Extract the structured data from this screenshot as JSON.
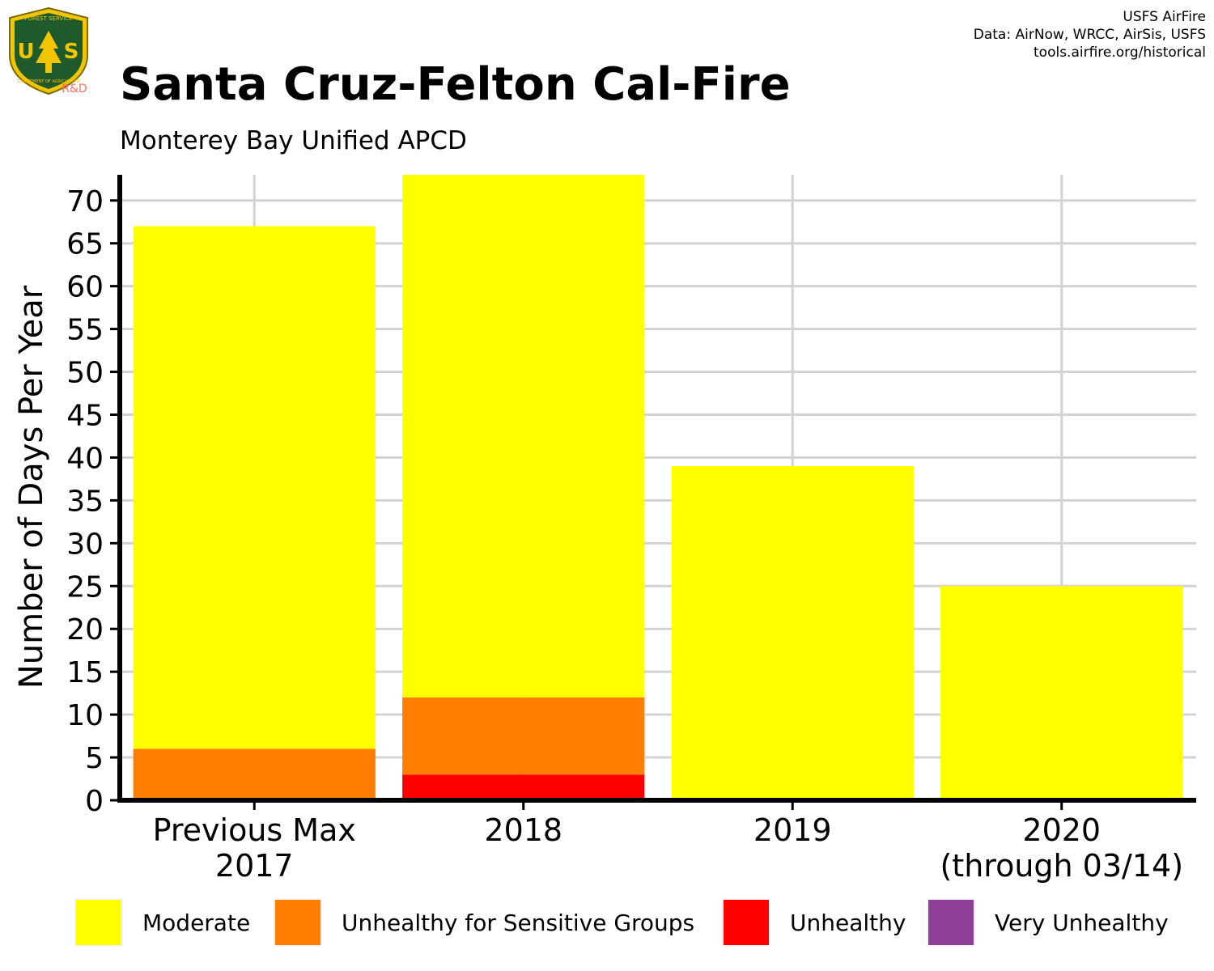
{
  "header": {
    "title": "Santa Cruz-Felton Cal-Fire",
    "subtitle": "Monterey Bay Unified APCD",
    "credits": [
      "USFS AirFire",
      "Data: AirNow, WRCC, AirSis, USFS",
      "tools.airfire.org/historical"
    ]
  },
  "logo": {
    "top_text": "FOREST SERVICE",
    "letters": "US",
    "bottom_text": "DEPARTMENT OF AGRICULTURE",
    "badge": "R&D"
  },
  "colors": {
    "moderate": "#ffff00",
    "usg": "#ff7e00",
    "unhealthy": "#ff0000",
    "very_unhealthy": "#8f3f97",
    "grid": "#d3d3d3",
    "axis": "#000000"
  },
  "chart_data": {
    "type": "bar",
    "stacked": true,
    "categories": [
      "Previous Max\n2017",
      "2018",
      "2019",
      "2020\n(through 03/14)"
    ],
    "series": [
      {
        "name": "Moderate",
        "values": [
          61,
          61,
          39,
          25
        ]
      },
      {
        "name": "Unhealthy for Sensitive Groups",
        "values": [
          6,
          9,
          0,
          0
        ]
      },
      {
        "name": "Unhealthy",
        "values": [
          0,
          3,
          0,
          0
        ]
      },
      {
        "name": "Very Unhealthy",
        "values": [
          0,
          0,
          0,
          0
        ]
      }
    ],
    "title": "Santa Cruz-Felton Cal-Fire",
    "subtitle": "Monterey Bay Unified APCD",
    "xlabel": "",
    "ylabel": "Number of Days Per Year",
    "ylim": [
      0,
      73
    ],
    "yticks": [
      0,
      5,
      10,
      15,
      20,
      25,
      30,
      35,
      40,
      45,
      50,
      55,
      60,
      65,
      70
    ],
    "grid": true,
    "legend_position": "bottom"
  },
  "legend": [
    {
      "label": "Moderate",
      "color": "#ffff00"
    },
    {
      "label": "Unhealthy for Sensitive Groups",
      "color": "#ff7e00"
    },
    {
      "label": "Unhealthy",
      "color": "#ff0000"
    },
    {
      "label": "Very Unhealthy",
      "color": "#8f3f97"
    }
  ]
}
